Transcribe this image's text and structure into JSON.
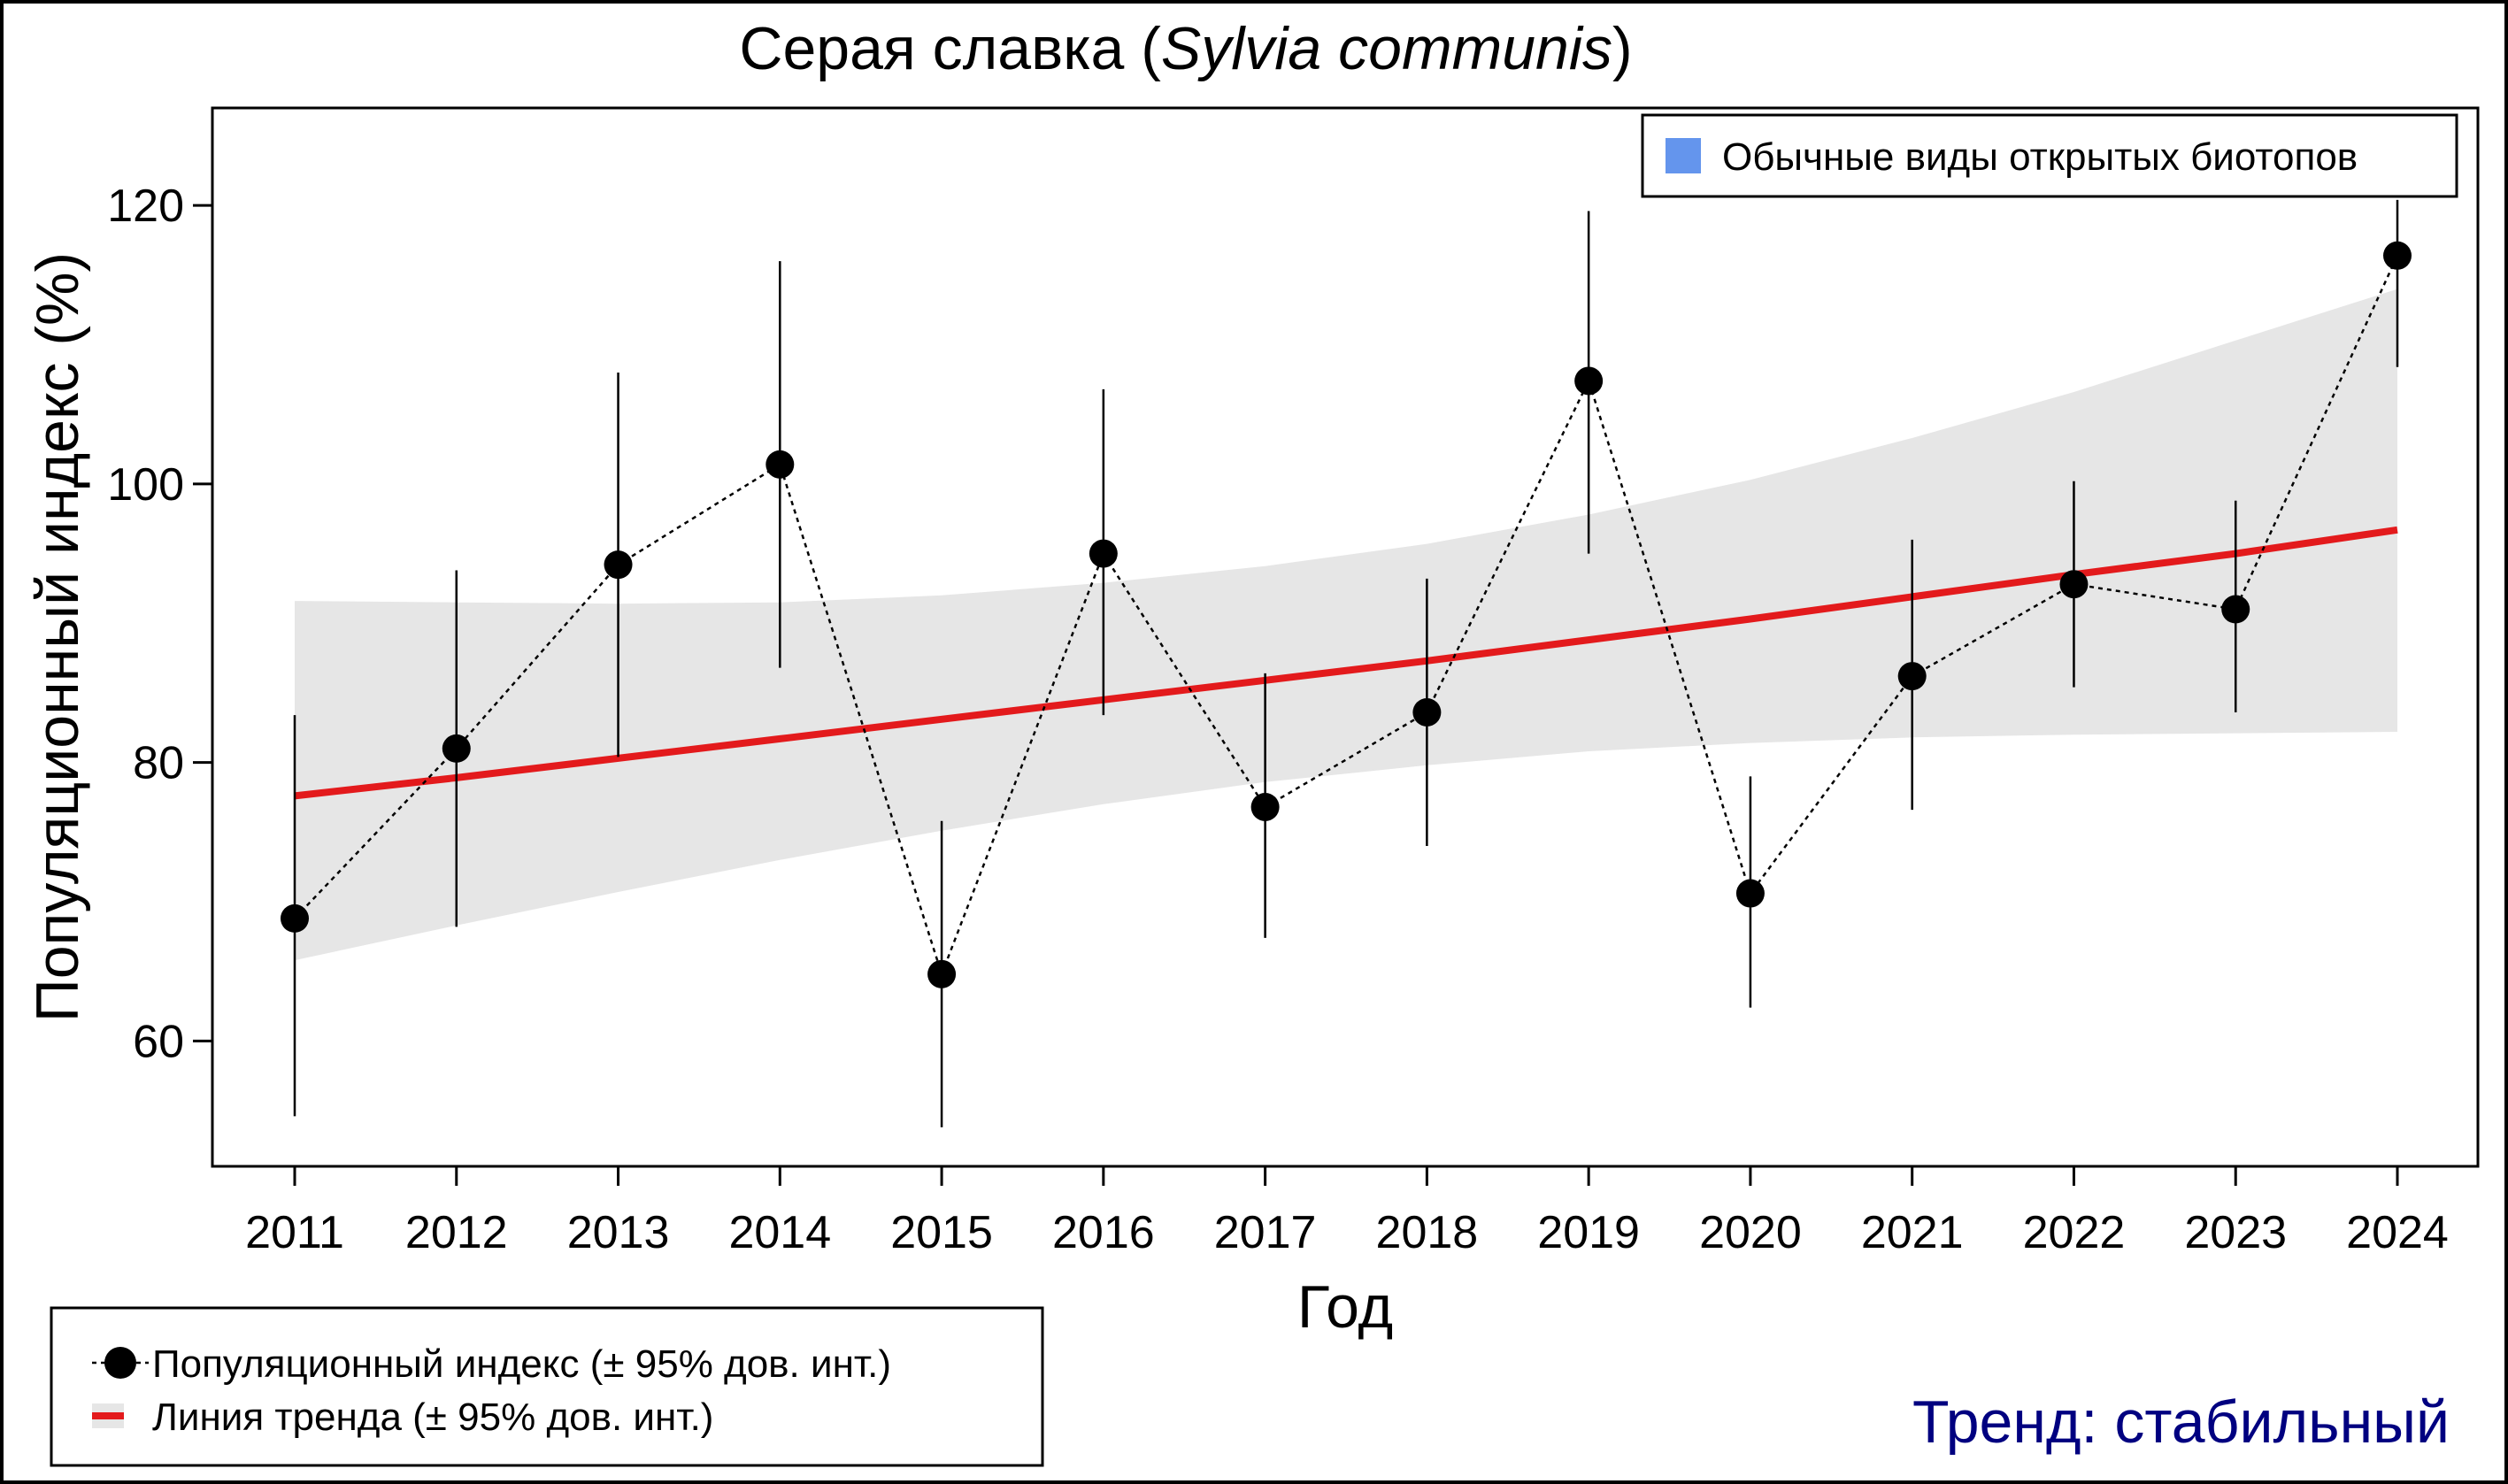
{
  "chart_data": {
    "type": "line",
    "title_main": "Серая славка (",
    "title_latin": "Sylvia communis",
    "title_end": ")",
    "xlabel": "Год",
    "ylabel": "Популяционный индекс (%)",
    "ylim": [
      51,
      127
    ],
    "yticks": [
      60,
      80,
      100,
      120
    ],
    "x": [
      2011,
      2012,
      2013,
      2014,
      2015,
      2016,
      2017,
      2018,
      2019,
      2020,
      2021,
      2022,
      2023,
      2024
    ],
    "series": [
      {
        "name": "Популяционный индекс (± 95% дов. инт.)",
        "values": [
          68.8,
          81.0,
          94.2,
          101.4,
          64.8,
          95.0,
          76.8,
          83.6,
          107.4,
          70.6,
          86.2,
          92.8,
          91.0,
          116.4
        ],
        "lower": [
          54.6,
          68.2,
          80.4,
          86.8,
          53.8,
          83.4,
          67.4,
          74.0,
          95.0,
          62.4,
          76.6,
          85.4,
          83.6,
          108.4
        ],
        "upper": [
          83.4,
          93.8,
          108.0,
          116.0,
          75.8,
          106.8,
          86.4,
          93.2,
          119.6,
          79.0,
          96.0,
          100.2,
          98.8,
          120.4
        ]
      },
      {
        "name": "Линия тренда (± 95% дов. инт.)",
        "values": [
          77.6,
          78.9,
          80.3,
          81.7,
          83.1,
          84.5,
          85.9,
          87.3,
          88.8,
          90.3,
          91.9,
          93.5,
          95.0,
          96.7
        ],
        "lower": [
          65.8,
          68.3,
          70.7,
          73.0,
          75.1,
          77.0,
          78.6,
          79.8,
          80.8,
          81.4,
          81.8,
          82.0,
          82.1,
          82.2
        ],
        "upper": [
          91.6,
          91.5,
          91.4,
          91.5,
          92.0,
          92.9,
          94.1,
          95.7,
          97.8,
          100.3,
          103.3,
          106.6,
          110.3,
          114.0
        ]
      }
    ],
    "badge": "Обычные виды открытых биотопов",
    "badge_color": "#6495ED",
    "trend_text": "Тренд: стабильный",
    "trend_color": "#000080",
    "trend_line_color": "#E31A1C",
    "band_color": "#E6E6E6",
    "point_color": "#000000",
    "legend_placement": "bottom-left",
    "grid": false
  }
}
